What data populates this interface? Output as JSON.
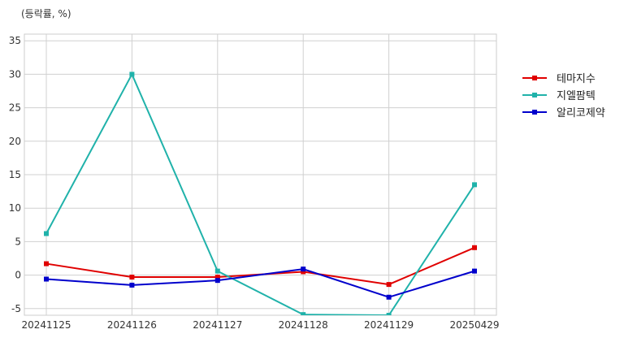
{
  "chart_data": {
    "type": "line",
    "unit_label": "(등락률, %)",
    "categories": [
      "20241125",
      "20241126",
      "20241127",
      "20241128",
      "20241129",
      "20250429"
    ],
    "ylim": [
      -6,
      36
    ],
    "yticks": [
      -5,
      0,
      5,
      10,
      15,
      20,
      25,
      30,
      35
    ],
    "grid": true,
    "legend_position": "right",
    "series": [
      {
        "name": "테마지수",
        "color": "#e00000",
        "values": [
          1.7,
          -0.3,
          -0.3,
          0.5,
          -1.4,
          4.1
        ]
      },
      {
        "name": "지엘팜텍",
        "color": "#20b2aa",
        "values": [
          6.2,
          30.0,
          0.6,
          -5.9,
          -6.0,
          13.5
        ]
      },
      {
        "name": "알리코제약",
        "color": "#0000cc",
        "values": [
          -0.6,
          -1.5,
          -0.8,
          0.9,
          -3.3,
          0.6
        ]
      }
    ]
  }
}
